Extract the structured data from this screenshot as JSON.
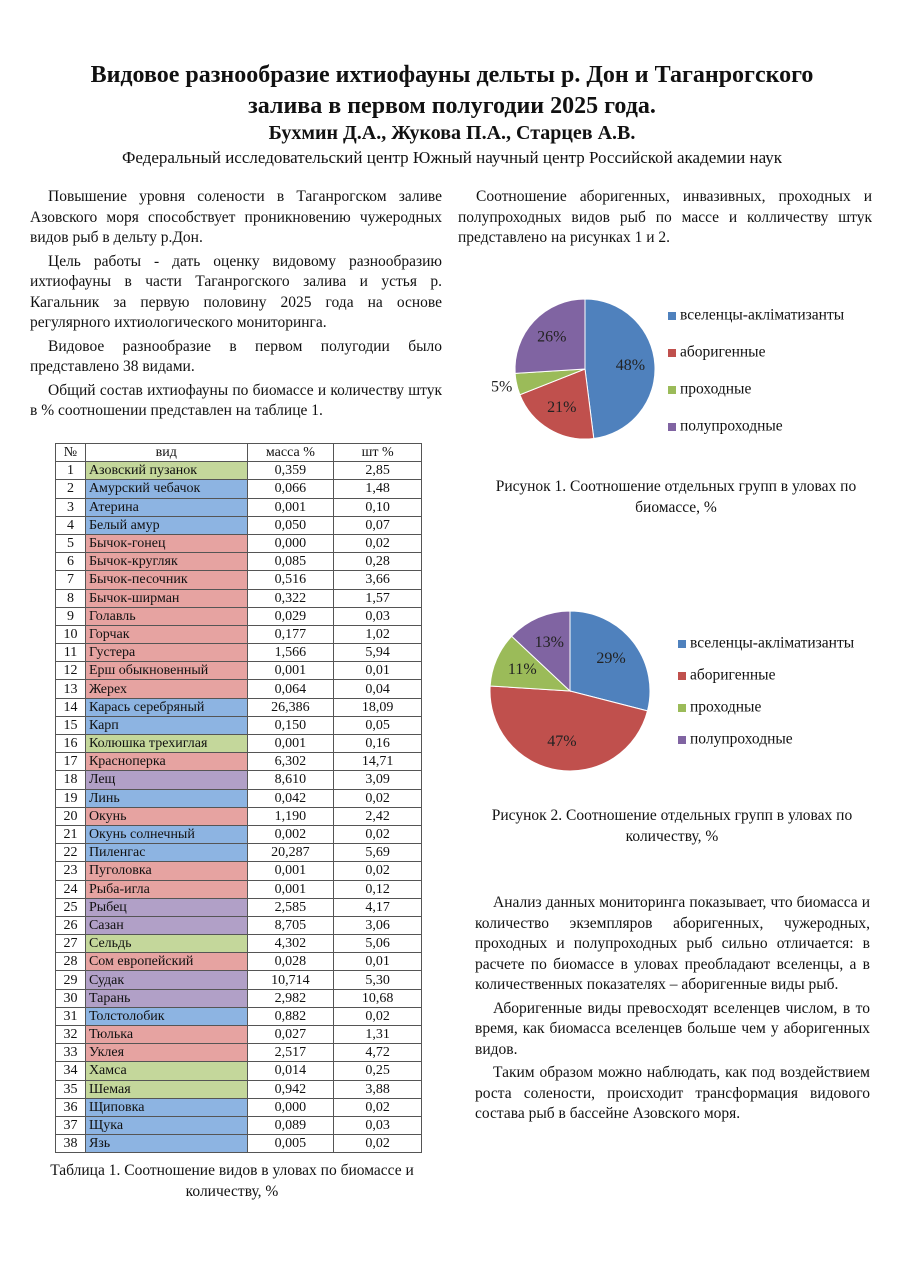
{
  "header": {
    "title_line1": "Видовое разнообразие ихтиофауны дельты р. Дон и Таганрогского",
    "title_line2": "залива в первом полугодии 2025 года.",
    "authors": "Бухмин Д.А., Жукова П.А., Старцев А.В.",
    "affiliation": "Федеральный исследовательский центр Южный научный центр Российской академии наук"
  },
  "left_text": [
    "Повышение уровня солености в Таганрогском заливе Азовского моря способствует проникновению чужеродных видов рыб в дельту р.Дон.",
    "Цель работы - дать оценку видовому разнообразию ихтиофауны в части Таганрогского залива и устья р. Кагальник за первую половину 2025 года на основе регулярного ихтиологического мониторинга.",
    "Видовое разнообразие в первом полугодии было представлено 38 видами.",
    "Общий состав ихтиофауны по биомассе и количеству штук в % соотношении представлен на таблице 1."
  ],
  "table": {
    "columns": [
      "№",
      "вид",
      "масса %",
      "шт %"
    ],
    "rows": [
      [
        "1",
        "Азовский пузанок",
        "0,359",
        "2,85"
      ],
      [
        "2",
        "Амурский чебачок",
        "0,066",
        "1,48"
      ],
      [
        "3",
        "Атерина",
        "0,001",
        "0,10"
      ],
      [
        "4",
        "Белый амур",
        "0,050",
        "0,07"
      ],
      [
        "5",
        "Бычок-гонец",
        "0,000",
        "0,02"
      ],
      [
        "6",
        "Бычок-кругляк",
        "0,085",
        "0,28"
      ],
      [
        "7",
        "Бычок-песочник",
        "0,516",
        "3,66"
      ],
      [
        "8",
        "Бычок-ширман",
        "0,322",
        "1,57"
      ],
      [
        "9",
        "Голавль",
        "0,029",
        "0,03"
      ],
      [
        "10",
        "Горчак",
        "0,177",
        "1,02"
      ],
      [
        "11",
        "Густера",
        "1,566",
        "5,94"
      ],
      [
        "12",
        "Ерш обыкновенный",
        "0,001",
        "0,01"
      ],
      [
        "13",
        "Жерех",
        "0,064",
        "0,04"
      ],
      [
        "14",
        "Карась серебряный",
        "26,386",
        "18,09"
      ],
      [
        "15",
        "Карп",
        "0,150",
        "0,05"
      ],
      [
        "16",
        "Колюшка трехиглая",
        "0,001",
        "0,16"
      ],
      [
        "17",
        "Красноперка",
        "6,302",
        "14,71"
      ],
      [
        "18",
        "Лещ",
        "8,610",
        "3,09"
      ],
      [
        "19",
        "Линь",
        "0,042",
        "0,02"
      ],
      [
        "20",
        "Окунь",
        "1,190",
        "2,42"
      ],
      [
        "21",
        "Окунь солнечный",
        "0,002",
        "0,02"
      ],
      [
        "22",
        "Пиленгас",
        "20,287",
        "5,69"
      ],
      [
        "23",
        "Пуголовка",
        "0,001",
        "0,02"
      ],
      [
        "24",
        "Рыба-игла",
        "0,001",
        "0,12"
      ],
      [
        "25",
        "Рыбец",
        "2,585",
        "4,17"
      ],
      [
        "26",
        "Сазан",
        "8,705",
        "3,06"
      ],
      [
        "27",
        "Сельдь",
        "4,302",
        "5,06"
      ],
      [
        "28",
        "Сом европейский",
        "0,028",
        "0,01"
      ],
      [
        "29",
        "Судак",
        "10,714",
        "5,30"
      ],
      [
        "30",
        "Тарань",
        "2,982",
        "10,68"
      ],
      [
        "31",
        "Толстолобик",
        "0,882",
        "0,02"
      ],
      [
        "32",
        "Тюлька",
        "0,027",
        "1,31"
      ],
      [
        "33",
        "Уклея",
        "2,517",
        "4,72"
      ],
      [
        "34",
        "Хамса",
        "0,014",
        "0,25"
      ],
      [
        "35",
        "Шемая",
        "0,942",
        "3,88"
      ],
      [
        "36",
        "Щиповка",
        "0,000",
        "0,02"
      ],
      [
        "37",
        "Щука",
        "0,089",
        "0,03"
      ],
      [
        "38",
        "Язь",
        "0,005",
        "0,02"
      ]
    ],
    "row_colors": [
      "#c4d79b",
      "#8db4e2",
      "#8db4e2",
      "#8db4e2",
      "#e6a3a1",
      "#e6a3a1",
      "#e6a3a1",
      "#e6a3a1",
      "#e6a3a1",
      "#e6a3a1",
      "#e6a3a1",
      "#e6a3a1",
      "#e6a3a1",
      "#8db4e2",
      "#8db4e2",
      "#c4d79b",
      "#e6a3a1",
      "#b1a0c7",
      "#8db4e2",
      "#e6a3a1",
      "#8db4e2",
      "#8db4e2",
      "#e6a3a1",
      "#e6a3a1",
      "#b1a0c7",
      "#b1a0c7",
      "#c4d79b",
      "#e6a3a1",
      "#b1a0c7",
      "#b1a0c7",
      "#8db4e2",
      "#e6a3a1",
      "#e6a3a1",
      "#c4d79b",
      "#c4d79b",
      "#8db4e2",
      "#8db4e2",
      "#8db4e2"
    ],
    "caption": "Таблица 1. Соотношение видов в уловах по биомассе и количеству, %"
  },
  "right_intro": "Соотношение аборигенных, инвазивных, проходных и полупроходных видов рыб по массе и колличеству штук представлено на рисунках 1 и 2.",
  "chart_data": [
    {
      "type": "pie",
      "categories": [
        "вселенцы-акліматизанты",
        "аборигенные",
        "проходные",
        "полупроходные"
      ],
      "values": [
        48,
        21,
        5,
        26
      ],
      "value_labels": [
        "48%",
        "21%",
        "5%",
        "26%"
      ],
      "colors": [
        "#4f81bd",
        "#c0504d",
        "#9bbb59",
        "#8064a2"
      ],
      "caption": "Рисунок 1. Соотношение отдельных групп в уловах по биомассе, %"
    },
    {
      "type": "pie",
      "categories": [
        "вселенцы-акліматизанты",
        "аборигенные",
        "проходные",
        "полупроходные"
      ],
      "values": [
        29,
        47,
        11,
        13
      ],
      "value_labels": [
        "29%",
        "47%",
        "11%",
        "13%"
      ],
      "colors": [
        "#4f81bd",
        "#c0504d",
        "#9bbb59",
        "#8064a2"
      ],
      "caption": "Рисунок 2. Соотношение отдельных групп в уловах по количеству, %"
    }
  ],
  "right_text": [
    "Анализ данных мониторинга показывает, что биомасса и количество экземпляров аборигенных, чужеродных, проходных и полупроходных рыб сильно отличается: в расчете по биомассе в уловах преобладают вселенцы, а в количественных показателях – аборигенные виды рыб.",
    "Аборигенные виды превосходят вселенцев числом, в то время, как биомасса вселенцев больше чем у аборигенных видов.",
    "Таким образом можно наблюдать, как под воздействием роста солености, происходит трансформация видового состава рыб в бассейне Азовского моря."
  ]
}
